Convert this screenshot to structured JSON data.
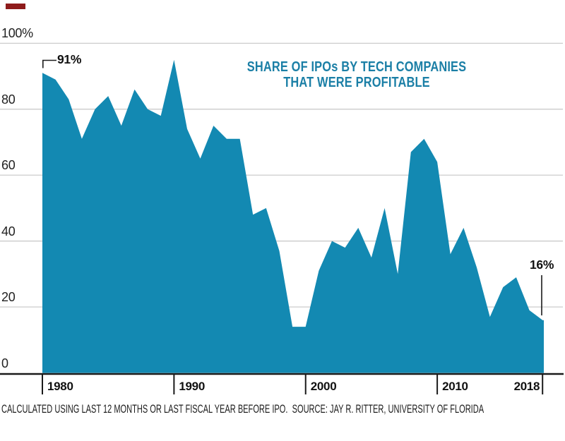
{
  "brand": {
    "bar_color": "#8e1b1b"
  },
  "chart_data": {
    "type": "area",
    "title_lines": [
      "SHARE OF IPOs BY TECH COMPANIES",
      "THAT WERE PROFITABLE"
    ],
    "title_color": "#1b7fa6",
    "fill_color": "#1389b2",
    "grid": true,
    "legend": "none",
    "ylim": [
      0,
      100
    ],
    "x": [
      1980,
      1981,
      1982,
      1983,
      1984,
      1985,
      1986,
      1987,
      1988,
      1989,
      1990,
      1991,
      1992,
      1993,
      1994,
      1995,
      1996,
      1997,
      1998,
      1999,
      2000,
      2001,
      2002,
      2003,
      2004,
      2005,
      2006,
      2007,
      2008,
      2009,
      2010,
      2011,
      2012,
      2013,
      2014,
      2015,
      2016,
      2017,
      2018
    ],
    "values": [
      91,
      89,
      83,
      71,
      80,
      84,
      75,
      86,
      80,
      78,
      95,
      74,
      65,
      75,
      71,
      71,
      48,
      50,
      37,
      14,
      14,
      31,
      40,
      38,
      44,
      35,
      50,
      30,
      67,
      71,
      64,
      36,
      44,
      32,
      17,
      26,
      29,
      19,
      16
    ],
    "y_ticks": [
      {
        "label": "100%",
        "value": 100
      },
      {
        "label": "80",
        "value": 80
      },
      {
        "label": "60",
        "value": 60
      },
      {
        "label": "40",
        "value": 40
      },
      {
        "label": "20",
        "value": 20
      },
      {
        "label": "0",
        "value": 0
      }
    ],
    "x_ticks": [
      {
        "label": "1980",
        "year": 1980,
        "align": "left"
      },
      {
        "label": "1990",
        "year": 1990,
        "align": "left"
      },
      {
        "label": "2000",
        "year": 2000,
        "align": "left"
      },
      {
        "label": "2010",
        "year": 2010,
        "align": "left"
      },
      {
        "label": "2018",
        "year": 2018,
        "align": "right"
      }
    ],
    "annotations": {
      "start": {
        "label": "91%",
        "year": 1980,
        "value": 91
      },
      "end": {
        "label": "16%",
        "year": 2018,
        "value": 16
      }
    }
  },
  "footer": {
    "text": "CALCULATED USING LAST 12 MONTHS OR LAST FISCAL YEAR BEFORE IPO.  SOURCE: JAY R. RITTER, UNIVERSITY OF FLORIDA"
  }
}
